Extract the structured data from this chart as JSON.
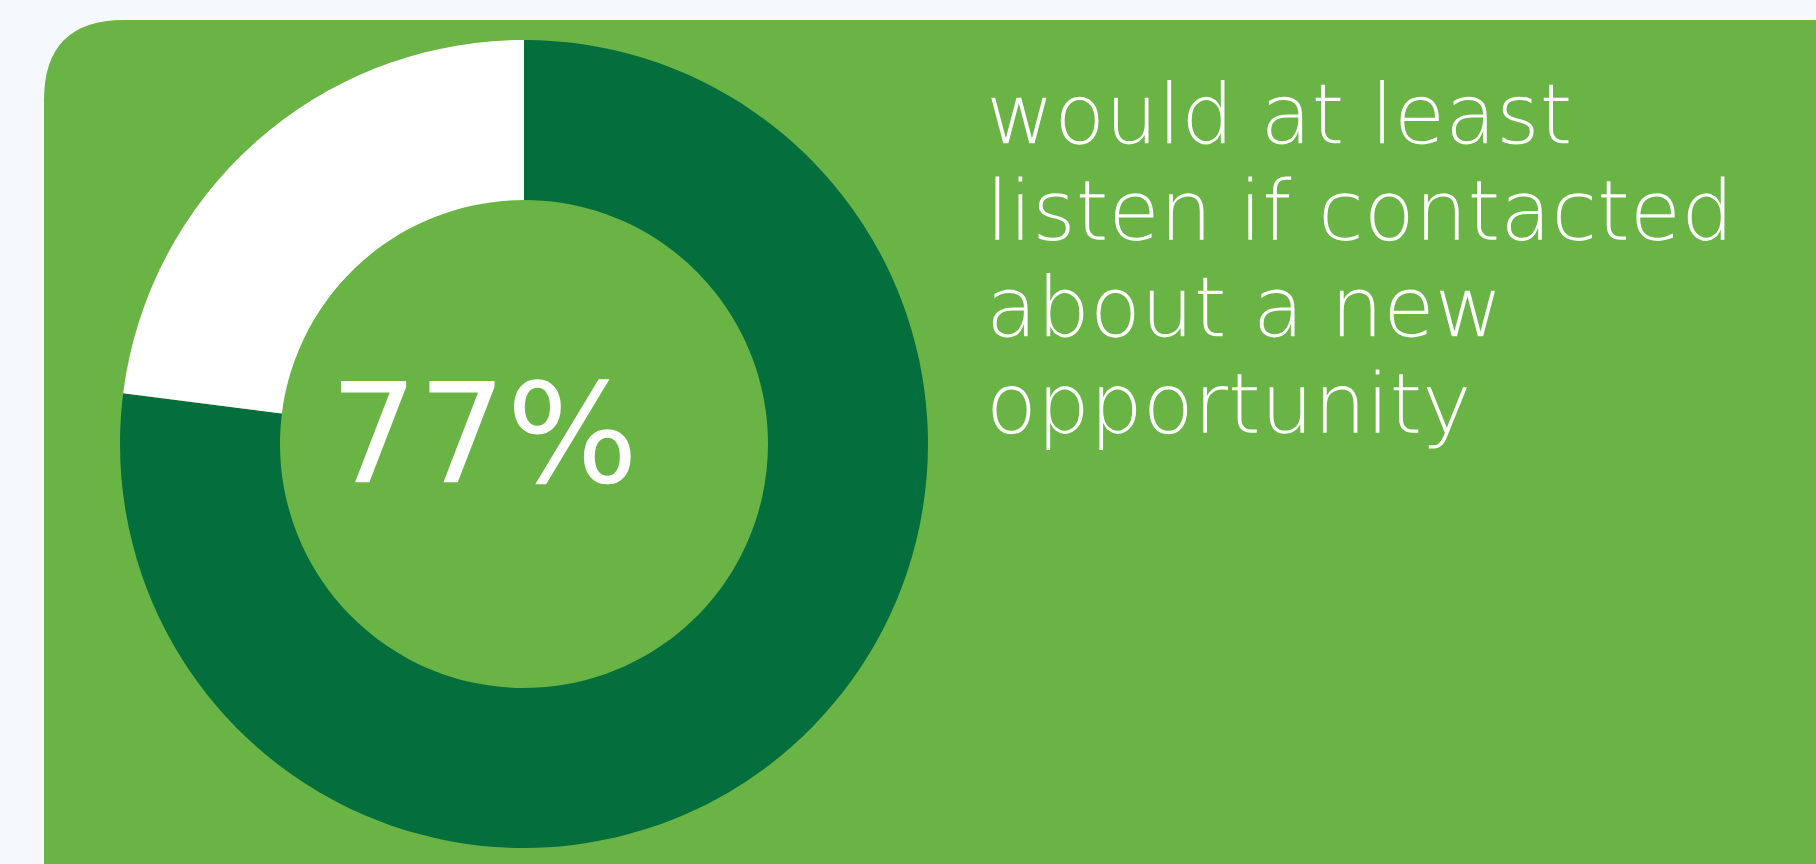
{
  "chart_data": {
    "type": "donut",
    "categories": [
      null,
      null
    ],
    "values": [
      77,
      23
    ],
    "colors": [
      "#046f3c",
      "#ffffff"
    ],
    "value_labels": [
      "77%",
      null
    ],
    "annotations": [
      "would at least listen if contacted about a new opportunity"
    ]
  }
}
